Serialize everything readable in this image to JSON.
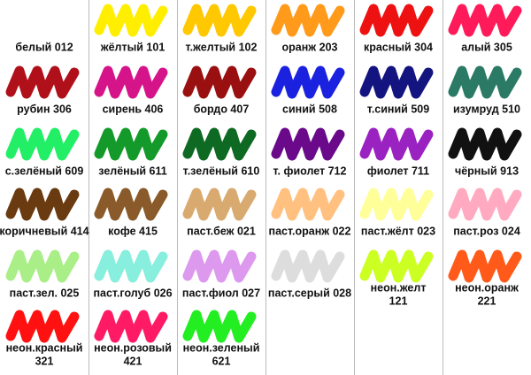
{
  "rows": [
    [
      {
        "lines": [
          "белый 012"
        ],
        "color": "#ffffff"
      },
      {
        "lines": [
          "жёлтый 101"
        ],
        "color": "#ffee00"
      },
      {
        "lines": [
          "т.желтый 102"
        ],
        "color": "#ffc800"
      },
      {
        "lines": [
          "оранж 203"
        ],
        "color": "#ff9a1a"
      },
      {
        "lines": [
          "красный 304"
        ],
        "color": "#ee1111"
      },
      {
        "lines": [
          "алый 305"
        ],
        "color": "#ff1a5a"
      }
    ],
    [
      {
        "lines": [
          "рубин 306"
        ],
        "color": "#b0101a"
      },
      {
        "lines": [
          "сирень 406"
        ],
        "color": "#d6148a"
      },
      {
        "lines": [
          "бордо 407"
        ],
        "color": "#9a1010"
      },
      {
        "lines": [
          "синий 508"
        ],
        "color": "#1a22e0"
      },
      {
        "lines": [
          "т.синий 509"
        ],
        "color": "#141480"
      },
      {
        "lines": [
          "изумруд 510"
        ],
        "color": "#2a7a66"
      }
    ],
    [
      {
        "lines": [
          "с.зелёный 609"
        ],
        "color": "#22ee66"
      },
      {
        "lines": [
          "зелёный 611"
        ],
        "color": "#149a2a"
      },
      {
        "lines": [
          "т.зелёный 610"
        ],
        "color": "#0e6a22"
      },
      {
        "lines": [
          "т. фиолет 712"
        ],
        "color": "#6a0a8a"
      },
      {
        "lines": [
          "фиолет 711"
        ],
        "color": "#9a22c0"
      },
      {
        "lines": [
          "чёрный 913"
        ],
        "color": "#111111"
      }
    ],
    [
      {
        "lines": [
          "коричневый 414"
        ],
        "color": "#6a3a10"
      },
      {
        "lines": [
          "кофе 415"
        ],
        "color": "#8a5a2a"
      },
      {
        "lines": [
          "паст.беж 021"
        ],
        "color": "#d8aa70"
      },
      {
        "lines": [
          "паст.оранж 022"
        ],
        "color": "#ffc080"
      },
      {
        "lines": [
          "паст.жёлт 023"
        ],
        "color": "#ffff99"
      },
      {
        "lines": [
          "паст.роз 024"
        ],
        "color": "#ffaac0"
      }
    ],
    [
      {
        "lines": [
          "паст.зел. 025"
        ],
        "color": "#aaee88"
      },
      {
        "lines": [
          "паст.голуб 026"
        ],
        "color": "#88eedd"
      },
      {
        "lines": [
          "паст.фиол 027"
        ],
        "color": "#dd99ee"
      },
      {
        "lines": [
          "паст.серый 028"
        ],
        "color": "#dddddd"
      },
      {
        "lines": [
          "неон.желт",
          "121"
        ],
        "color": "#ccff22"
      },
      {
        "lines": [
          "неон.оранж",
          "221"
        ],
        "color": "#ff5a1a"
      }
    ],
    [
      {
        "lines": [
          "неон.красный",
          "321"
        ],
        "color": "#ff1111"
      },
      {
        "lines": [
          "неон.розовый",
          "421"
        ],
        "color": "#ff1a66"
      },
      {
        "lines": [
          "неон.зеленый",
          "621"
        ],
        "color": "#22ee22"
      }
    ]
  ]
}
